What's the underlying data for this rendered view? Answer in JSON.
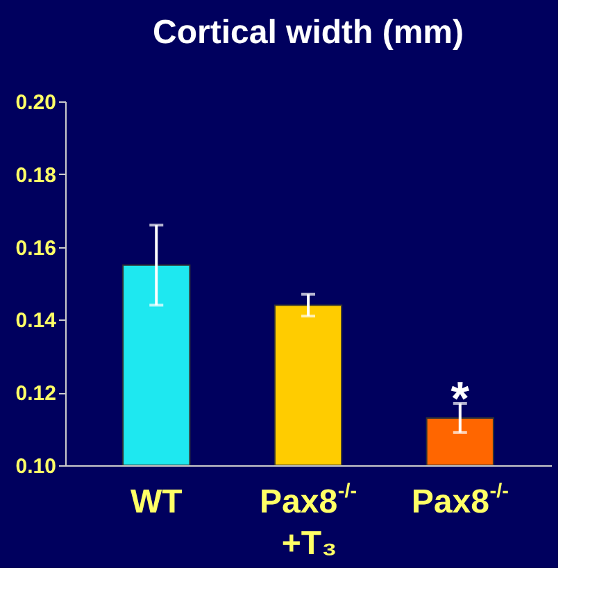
{
  "chart_data": {
    "type": "bar",
    "title": "Cortical width (mm)",
    "categories": [
      "WT",
      "Pax8$^{-/-}$\n+T₃",
      "Pax8$^{-/-}$"
    ],
    "values": [
      0.155,
      0.144,
      0.113
    ],
    "colors": [
      "#1ee8f0",
      "#ffcc00",
      "#ff6600"
    ],
    "errors": [
      0.011,
      0.003,
      0.004
    ],
    "ylim": [
      0.1,
      0.2
    ],
    "yticks": [
      {
        "value": 0.1,
        "label": "0.10"
      },
      {
        "value": 0.12,
        "label": "0.12"
      },
      {
        "value": 0.14,
        "label": "0.14"
      },
      {
        "value": 0.16,
        "label": "0.16"
      },
      {
        "value": 0.18,
        "label": "0.18"
      },
      {
        "value": 0.2,
        "label": "0.20"
      }
    ],
    "grid": false,
    "annotations": [
      "*"
    ]
  }
}
